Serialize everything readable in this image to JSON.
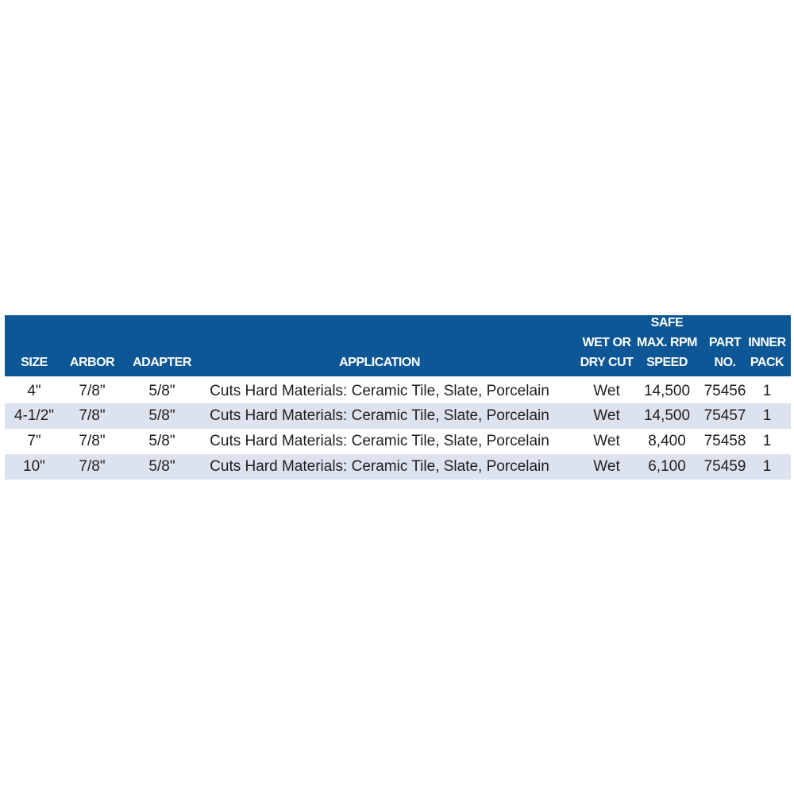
{
  "colors": {
    "header_bg": "#0d5796",
    "header_text": "#ffffff",
    "alt_row_bg": "#dce3ee"
  },
  "table": {
    "headers": [
      {
        "lines": [
          "SIZE"
        ]
      },
      {
        "lines": [
          "ARBOR"
        ]
      },
      {
        "lines": [
          "ADAPTER"
        ]
      },
      {
        "lines": [
          "APPLICATION"
        ]
      },
      {
        "lines": [
          "WET OR",
          "DRY CUT"
        ]
      },
      {
        "lines": [
          "SAFE",
          "MAX. RPM",
          "SPEED"
        ]
      },
      {
        "lines": [
          "PART",
          "NO."
        ]
      },
      {
        "lines": [
          "INNER",
          "PACK"
        ]
      }
    ],
    "rows": [
      [
        "4\"",
        "7/8\"",
        "5/8\"",
        "Cuts Hard Materials: Ceramic Tile, Slate, Porcelain",
        "Wet",
        "14,500",
        "75456",
        "1"
      ],
      [
        "4-1/2\"",
        "7/8\"",
        "5/8\"",
        "Cuts Hard Materials: Ceramic Tile, Slate, Porcelain",
        "Wet",
        "14,500",
        "75457",
        "1"
      ],
      [
        "7\"",
        "7/8\"",
        "5/8\"",
        "Cuts Hard Materials: Ceramic Tile, Slate, Porcelain",
        "Wet",
        "8,400",
        "75458",
        "1"
      ],
      [
        "10\"",
        "7/8\"",
        "5/8\"",
        "Cuts Hard Materials: Ceramic Tile, Slate, Porcelain",
        "Wet",
        "6,100",
        "75459",
        "1"
      ]
    ]
  }
}
